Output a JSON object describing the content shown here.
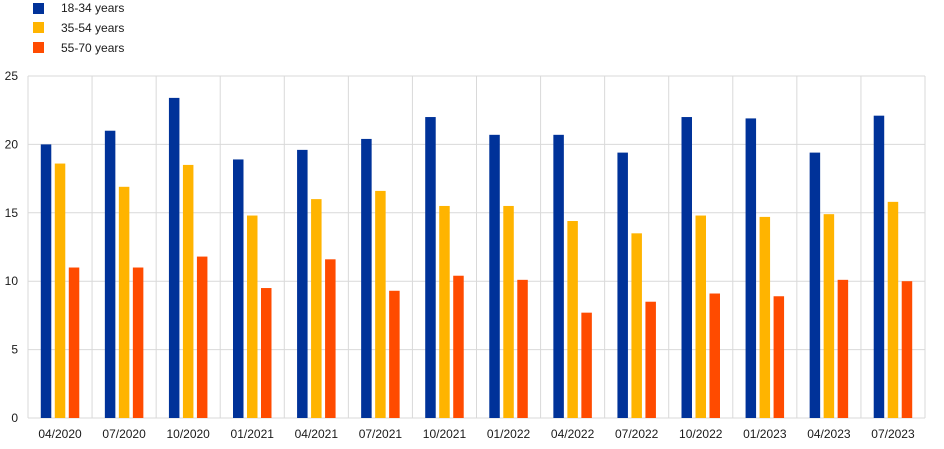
{
  "chart_data": {
    "type": "bar",
    "categories": [
      "04/2020",
      "07/2020",
      "10/2020",
      "01/2021",
      "04/2021",
      "07/2021",
      "10/2021",
      "01/2022",
      "04/2022",
      "07/2022",
      "10/2022",
      "01/2023",
      "04/2023",
      "07/2023"
    ],
    "series": [
      {
        "name": "18-34 years",
        "color": "#003299",
        "values": [
          20.0,
          21.0,
          23.4,
          18.9,
          19.6,
          20.4,
          22.0,
          20.7,
          20.7,
          19.4,
          22.0,
          21.9,
          19.4,
          22.1
        ]
      },
      {
        "name": "35-54 years",
        "color": "#FFB400",
        "values": [
          18.6,
          16.9,
          18.5,
          14.8,
          16.0,
          16.6,
          15.5,
          15.5,
          14.4,
          13.5,
          14.8,
          14.7,
          14.9,
          15.8
        ]
      },
      {
        "name": "55-70 years",
        "color": "#FF4B00",
        "values": [
          11.0,
          11.0,
          11.8,
          9.5,
          11.6,
          9.3,
          10.4,
          10.1,
          7.7,
          8.5,
          9.1,
          8.9,
          10.1,
          10.0
        ]
      }
    ],
    "ylim": [
      0,
      25
    ],
    "yticks": [
      0,
      5,
      10,
      15,
      20,
      25
    ],
    "grid": true,
    "legend_position": "top-left",
    "title": "",
    "xlabel": "",
    "ylabel": ""
  }
}
